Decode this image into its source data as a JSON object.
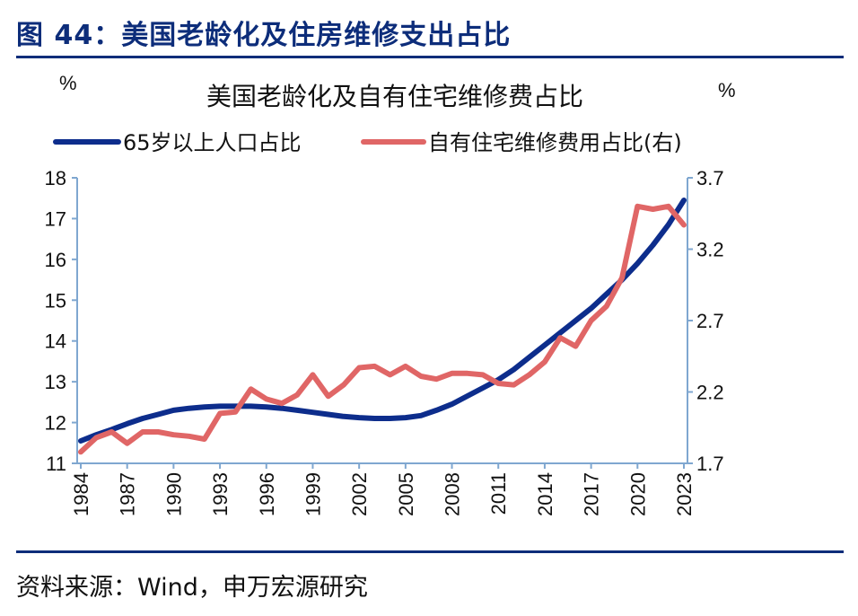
{
  "header": {
    "figure_title": "图 44：美国老龄化及住房维修支出占比"
  },
  "footer": {
    "source": "资料来源：Wind，申万宏源研究"
  },
  "colors": {
    "primary_series": "#0d2d8c",
    "secondary_series": "#e06666",
    "axis": "#7fa7d0",
    "rule": "#0d2d7a"
  },
  "chart_data": {
    "type": "line",
    "title": "美国老龄化及自有住宅维修费占比",
    "left_unit": "%",
    "right_unit": "%",
    "ylim_left": [
      11,
      18
    ],
    "ylim_right": [
      1.7,
      3.7
    ],
    "yticks_left": [
      "18",
      "17",
      "16",
      "15",
      "14",
      "13",
      "12",
      "11"
    ],
    "yticks_right": [
      "3.7",
      "3.2",
      "2.7",
      "2.2",
      "1.7"
    ],
    "x_tick_labels": [
      "1984",
      "1987",
      "1990",
      "1993",
      "1996",
      "1999",
      "2002",
      "2005",
      "2008",
      "2011",
      "2014",
      "2017",
      "2020",
      "2023"
    ],
    "x": [
      1984,
      1985,
      1986,
      1987,
      1988,
      1989,
      1990,
      1991,
      1992,
      1993,
      1994,
      1995,
      1996,
      1997,
      1998,
      1999,
      2000,
      2001,
      2002,
      2003,
      2004,
      2005,
      2006,
      2007,
      2008,
      2009,
      2010,
      2011,
      2012,
      2013,
      2014,
      2015,
      2016,
      2017,
      2018,
      2019,
      2020,
      2021,
      2022,
      2023
    ],
    "legend": [
      "65岁以上人口占比",
      "自有住宅维修费用占比(右)"
    ],
    "series": [
      {
        "name": "65岁以上人口占比",
        "axis": "left",
        "values": [
          11.55,
          11.7,
          11.83,
          11.97,
          12.1,
          12.2,
          12.3,
          12.35,
          12.38,
          12.4,
          12.4,
          12.4,
          12.38,
          12.35,
          12.3,
          12.25,
          12.2,
          12.15,
          12.12,
          12.1,
          12.1,
          12.12,
          12.17,
          12.3,
          12.45,
          12.65,
          12.85,
          13.05,
          13.3,
          13.6,
          13.9,
          14.2,
          14.5,
          14.8,
          15.15,
          15.5,
          15.9,
          16.35,
          16.85,
          17.45
        ]
      },
      {
        "name": "自有住宅维修费用占比(右)",
        "axis": "right",
        "values": [
          1.78,
          1.88,
          1.92,
          1.84,
          1.92,
          1.92,
          1.9,
          1.89,
          1.87,
          2.05,
          2.06,
          2.22,
          2.15,
          2.12,
          2.18,
          2.32,
          2.17,
          2.25,
          2.37,
          2.38,
          2.32,
          2.38,
          2.31,
          2.29,
          2.33,
          2.33,
          2.32,
          2.26,
          2.25,
          2.32,
          2.41,
          2.58,
          2.52,
          2.7,
          2.8,
          3.0,
          3.5,
          3.48,
          3.5,
          3.37
        ]
      }
    ]
  }
}
